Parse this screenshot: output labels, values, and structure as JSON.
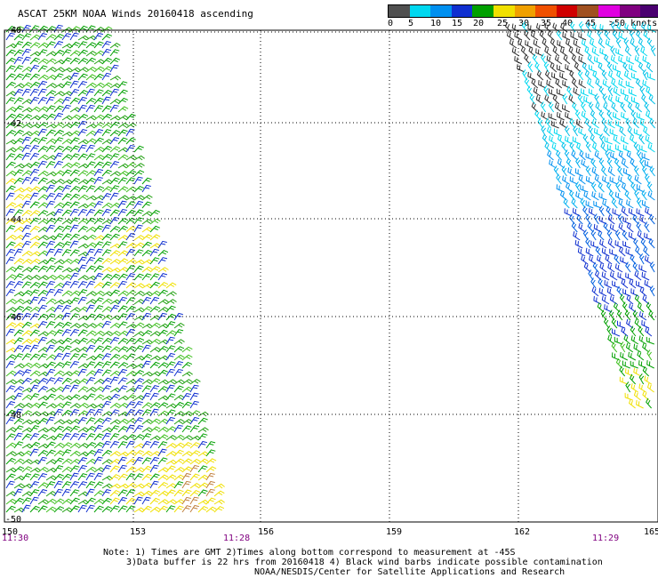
{
  "title": "ASCAT 25KM NOAA Winds 20160418 ascending",
  "colorbar": {
    "labels": [
      "0",
      "5",
      "10",
      "15",
      "20",
      "25",
      "30",
      "35",
      "40",
      "45",
      ">50 knots"
    ],
    "colors": [
      "#505050",
      "#00d8f0",
      "#0090f0",
      "#1030d0",
      "#00a000",
      "#f0e000",
      "#f0a000",
      "#f05000",
      "#d00000",
      "#a05020",
      "#e000e0",
      "#800080",
      "#4a0070"
    ]
  },
  "axes": {
    "lat_labels": [
      "-40",
      "-42",
      "-44",
      "-46",
      "-48",
      "-50"
    ],
    "lon_labels": [
      "150",
      "153",
      "156",
      "159",
      "162",
      "165"
    ]
  },
  "times": [
    "11:30",
    "11:28",
    "11:29"
  ],
  "notes": {
    "line1": "Note: 1) Times are GMT 2)Times along bottom correspond to measurement at -45S",
    "line2": "3)Data buffer is 22 hrs from 20160418 4) Black wind barbs indicate possible contamination",
    "line3": "NOAA/NESDIS/Center for Satellite Applications and Research"
  },
  "swaths": [
    {
      "name": "left-swath",
      "dominant_colors": [
        "green",
        "blue",
        "yellow"
      ]
    },
    {
      "name": "right-swath",
      "dominant_colors": [
        "black",
        "cyan",
        "blue",
        "green",
        "yellow"
      ]
    }
  ]
}
